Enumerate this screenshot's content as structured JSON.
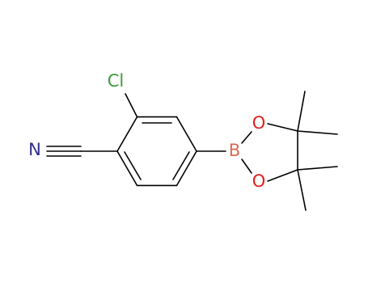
{
  "atoms": [
    "Cl",
    "N",
    "B",
    "O",
    "O"
  ]
}
